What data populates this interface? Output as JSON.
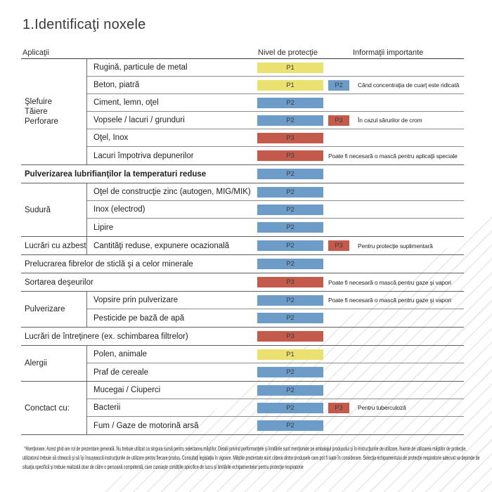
{
  "title": "1.Identificaţi noxele",
  "headers": {
    "applications": "Aplicaţii",
    "level": "Nivel de protecţie",
    "info": "Informaţii importante"
  },
  "level_colors": {
    "P1": "#ebe170",
    "P2": "#6d9cc8",
    "P3": "#c35a4b"
  },
  "bands": [
    {
      "type": "group",
      "label_lines": [
        "Şlefuire",
        "Tăiere",
        "Perforare"
      ],
      "rows": [
        {
          "label": "Rugină, particule de metal",
          "level": "P1",
          "extra": null,
          "note": null,
          "bold": false
        },
        {
          "label": "Beton, piatră",
          "level": "P1",
          "extra": "P2",
          "note": "Când concentraţia de cuarţ este ridicată",
          "bold": false
        },
        {
          "label": "Ciment, lemn, oţel",
          "level": "P2",
          "extra": null,
          "note": null,
          "bold": false
        },
        {
          "label": "Vopsele / lacuri / grunduri",
          "level": "P2",
          "extra": "P3",
          "note": "În cazul sărurilor de crom",
          "bold": false
        },
        {
          "label": "Oţel, Inox",
          "level": "P3",
          "extra": null,
          "note": null,
          "bold": false
        },
        {
          "label": "Lacuri împotriva depunerilor",
          "level": "P3",
          "extra": null,
          "note": "Poate fi necesară o mască pentru aplicaţii speciale",
          "bold": false
        }
      ]
    },
    {
      "type": "full",
      "row": {
        "label": "Pulverizarea lubrifianţilor la temperaturi reduse",
        "level": "P2",
        "extra": null,
        "note": null,
        "bold": true
      }
    },
    {
      "type": "group",
      "label_lines": [
        "Sudură"
      ],
      "rows": [
        {
          "label": "Oţel de construcţie zinc (autogen, MIG/MIK)",
          "level": "P2",
          "extra": null,
          "note": null,
          "bold": false
        },
        {
          "label": "Inox (electrod)",
          "level": "P2",
          "extra": null,
          "note": null,
          "bold": false
        },
        {
          "label": "Lipire",
          "level": "P2",
          "extra": null,
          "note": null,
          "bold": false
        }
      ]
    },
    {
      "type": "group",
      "label_lines": [
        "Lucrări cu azbest"
      ],
      "rows": [
        {
          "label": "Cantităţi reduse, expunere ocazională",
          "level": "P2",
          "extra": "P3",
          "note": "Pentru protecţie suplimentară",
          "bold": false
        }
      ]
    },
    {
      "type": "full",
      "row": {
        "label": "Prelucrarea fibrelor de sticlă şi a celor minerale",
        "level": "P2",
        "extra": null,
        "note": null,
        "bold": false
      }
    },
    {
      "type": "full",
      "row": {
        "label": "Sortarea deşeurilor",
        "level": "P3",
        "extra": null,
        "note": "Poate fi necesară o mască pentru gaze şi vapori",
        "bold": false
      }
    },
    {
      "type": "group",
      "label_lines": [
        "Pulverizare"
      ],
      "rows": [
        {
          "label": "Vopsire prin pulverizare",
          "level": "P2",
          "extra": null,
          "note": "Poate fi necesară o mască pentru gaze şi vapori",
          "bold": false
        },
        {
          "label": "Pesticide pe bază de apă",
          "level": "P2",
          "extra": null,
          "note": null,
          "bold": false
        }
      ]
    },
    {
      "type": "full",
      "row": {
        "label": "Lucrări de întreţinere (ex. schimbarea filtrelor)",
        "level": "P3",
        "extra": null,
        "note": null,
        "bold": false
      }
    },
    {
      "type": "group",
      "label_lines": [
        "Alergii"
      ],
      "rows": [
        {
          "label": "Polen, animale",
          "level": "P1",
          "extra": null,
          "note": null,
          "bold": false
        },
        {
          "label": "Praf de cereale",
          "level": "P2",
          "extra": null,
          "note": null,
          "bold": false
        }
      ]
    },
    {
      "type": "group",
      "label_lines": [
        "Conctact cu:"
      ],
      "rows": [
        {
          "label": "Mucegai / Ciuperci",
          "level": "P2",
          "extra": null,
          "note": null,
          "bold": false
        },
        {
          "label": "Bacterii",
          "level": "P2",
          "extra": "P3",
          "note": "Pentru tuberculoză",
          "bold": false
        },
        {
          "label": "Fum / Gaze de motorină arsă",
          "level": "P2",
          "extra": null,
          "note": null,
          "bold": false
        }
      ]
    }
  ],
  "footnote": "*Atenţionare: Acest ghid are rol de prezentare generală. Nu trebuie utilizat ca singura sursă pentru selectarea măştilor. Detalii privind performanţele şi limitările sunt menţionate pe ambalajul produsului şi în instrucţiunile de utilizare. Înainte de utilizarea măştilor de protecţie, utilizatorul trebuie să citească şi să îşi însuşească instrucţiunile de utilizare pentru fiecare produs. Consultaţi legislaţia în vigoare. Măştile prezentate sunt câteva dintre produsele care pot fi luate în considerare. Selecţia echipamentului de protecţie respiratorie adecvat va depinde de situaţia specifică şi trebuie realizată doar de către o persoană competentă, care cunoaşte condiţiile specifice de lucru şi limitările echipamentelor pentru protecţie respiratorie"
}
